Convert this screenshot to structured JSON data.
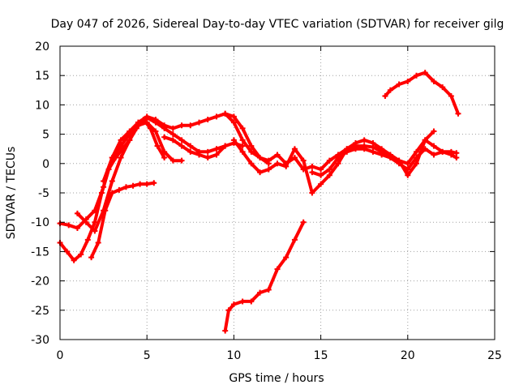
{
  "chart_data": {
    "type": "scatter",
    "title": "Day 047 of 2026, Sidereal Day-to-day VTEC variation (SDTVAR) for receiver gilg",
    "xlabel": "GPS time / hours",
    "ylabel": "SDTVAR / TECUs",
    "xlim": [
      0,
      25
    ],
    "ylim": [
      -30,
      20
    ],
    "xticks": [
      0,
      5,
      10,
      15,
      20,
      25
    ],
    "yticks": [
      -30,
      -25,
      -20,
      -15,
      -10,
      -5,
      0,
      5,
      10,
      15,
      20
    ],
    "grid": true,
    "marker": "plus",
    "color": "#ff0000",
    "series": [
      {
        "name": "track-1",
        "x": [
          0,
          0.5,
          1.0,
          1.5,
          2.0,
          2.5,
          3.0,
          3.5,
          4.0,
          4.5,
          5.0,
          5.5,
          6.0,
          6.5,
          7.0,
          7.5,
          8.0,
          8.5,
          9.0,
          9.5,
          10.0,
          10.5,
          11.0,
          11.5,
          12.0
        ],
        "y": [
          -10.2,
          -10.5,
          -11.0,
          -9.5,
          -8.0,
          -4.0,
          1.0,
          3.0,
          5.0,
          7.0,
          8.0,
          7.5,
          6.5,
          6.0,
          6.5,
          6.5,
          7.0,
          7.5,
          8.0,
          8.5,
          8.0,
          6.0,
          3.0,
          1.0,
          0.0
        ]
      },
      {
        "name": "track-2",
        "x": [
          0,
          0.4,
          0.8,
          1.2,
          1.6,
          2.0,
          2.4,
          2.8,
          3.2,
          3.6,
          4.0,
          4.4,
          4.8,
          5.2,
          5.6,
          6.0
        ],
        "y": [
          -13.5,
          -15.0,
          -16.5,
          -15.5,
          -13.0,
          -10.0,
          -5.0,
          -1.0,
          1.0,
          2.5,
          4.0,
          6.0,
          7.5,
          6.0,
          3.0,
          1.0
        ]
      },
      {
        "name": "track-3",
        "x": [
          1.0,
          1.5,
          2.0,
          2.5,
          3.0,
          3.5,
          4.0,
          4.5,
          5.0,
          5.5,
          6.0,
          6.5,
          7.0
        ],
        "y": [
          -8.5,
          -10.0,
          -11.5,
          -8.0,
          -3.0,
          1.0,
          4.0,
          6.5,
          7.0,
          5.5,
          2.0,
          0.5,
          0.5
        ]
      },
      {
        "name": "track-4",
        "x": [
          1.8,
          2.2,
          2.6,
          3.0,
          3.4,
          3.8,
          4.2,
          4.6,
          5.0,
          5.4
        ],
        "y": [
          -16.0,
          -13.5,
          -8.0,
          -5.0,
          -4.5,
          -4.0,
          -3.8,
          -3.5,
          -3.5,
          -3.3
        ]
      },
      {
        "name": "track-5",
        "x": [
          2.5,
          3.0,
          3.5,
          4.0,
          4.5,
          5.0,
          5.5,
          6.0,
          6.5,
          7.0,
          7.5,
          8.0,
          8.5,
          9.0,
          9.5
        ],
        "y": [
          -3.0,
          1.0,
          4.0,
          5.5,
          7.0,
          7.8,
          7.0,
          6.0,
          5.0,
          4.0,
          3.0,
          2.0,
          2.0,
          2.5,
          3.0
        ]
      },
      {
        "name": "track-6",
        "x": [
          6.0,
          6.5,
          7.0,
          7.5,
          8.0,
          8.5,
          9.0,
          9.5,
          10.0,
          10.5
        ],
        "y": [
          4.5,
          4.0,
          3.0,
          2.0,
          1.5,
          1.0,
          1.5,
          3.0,
          3.5,
          3.0
        ]
      },
      {
        "name": "track-7",
        "x": [
          9.5,
          10.0,
          10.5,
          11.0,
          11.5,
          12.0,
          12.5,
          13.0,
          13.5,
          14.0,
          14.5,
          15.0,
          15.5,
          16.0,
          16.5,
          17.0,
          17.5,
          18.0,
          18.5,
          19.0,
          19.5,
          20.0,
          20.5,
          21.0,
          21.5,
          22.0,
          22.5,
          22.8
        ],
        "y": [
          8.5,
          7.0,
          4.0,
          2.0,
          1.0,
          0.5,
          1.5,
          0.0,
          1.0,
          -1.0,
          -0.5,
          -1.0,
          0.5,
          1.5,
          2.5,
          3.0,
          3.0,
          2.8,
          2.0,
          1.0,
          0.0,
          -1.0,
          1.0,
          2.5,
          1.5,
          2.0,
          2.0,
          1.8
        ]
      },
      {
        "name": "track-8",
        "x": [
          10.0,
          10.5,
          11.0,
          11.5,
          12.0,
          12.5,
          13.0,
          13.5,
          14.0,
          14.5,
          15.0,
          15.5,
          16.0,
          16.5,
          17.0,
          17.5,
          18.0,
          18.5,
          19.0,
          19.5,
          20.0,
          20.5,
          21.0,
          21.5
        ],
        "y": [
          4.0,
          2.0,
          0.0,
          -1.5,
          -1.0,
          0.0,
          -0.5,
          2.5,
          0.5,
          -5.0,
          -3.5,
          -2.0,
          0.0,
          2.5,
          3.5,
          4.0,
          3.5,
          2.5,
          1.5,
          0.5,
          -2.0,
          0.0,
          4.0,
          5.5
        ]
      },
      {
        "name": "track-9",
        "x": [
          14.5,
          15.0,
          15.5,
          16.0,
          16.5,
          17.0,
          17.5,
          18.0,
          18.5,
          19.0,
          19.5,
          20.0,
          20.5,
          21.0,
          21.5,
          22.0,
          22.5,
          22.8
        ],
        "y": [
          -1.5,
          -2.0,
          -1.0,
          1.0,
          2.0,
          2.5,
          2.5,
          2.0,
          1.5,
          1.0,
          0.5,
          0.0,
          2.0,
          4.0,
          3.0,
          2.0,
          1.5,
          1.0
        ]
      },
      {
        "name": "track-10",
        "x": [
          9.5,
          9.7,
          10.0,
          10.5,
          11.0,
          11.5,
          12.0,
          12.5,
          13.0,
          13.5,
          14.0
        ],
        "y": [
          -28.5,
          -25.0,
          -24.0,
          -23.5,
          -23.5,
          -22.0,
          -21.5,
          -18.0,
          -16.0,
          -13.0,
          -10.0
        ]
      },
      {
        "name": "track-11",
        "x": [
          18.7,
          19.0,
          19.5,
          20.0,
          20.5,
          21.0,
          21.5,
          22.0,
          22.5,
          22.9
        ],
        "y": [
          11.5,
          12.5,
          13.5,
          14.0,
          15.0,
          15.5,
          14.0,
          13.0,
          11.5,
          8.5
        ]
      }
    ]
  }
}
